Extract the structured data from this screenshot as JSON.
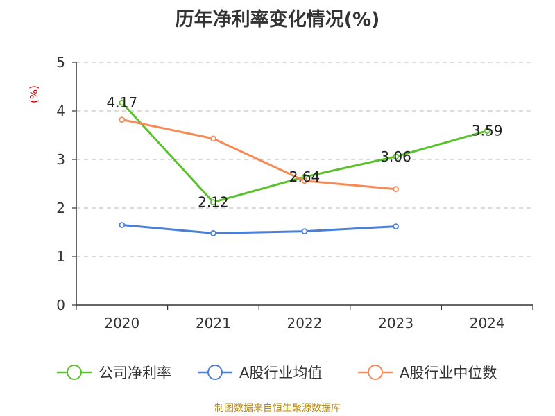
{
  "chart_data": {
    "type": "line",
    "title": "历年净利率变化情况(%)",
    "ylabel": "(%)",
    "categories": [
      "2020",
      "2021",
      "2022",
      "2023",
      "2024"
    ],
    "ylim": [
      0,
      5
    ],
    "yticks": [
      0,
      1,
      2,
      3,
      4,
      5
    ],
    "grid": true,
    "legend_position": "bottom",
    "series": [
      {
        "name": "公司净利率",
        "color": "#5ac12c",
        "values": [
          4.17,
          2.12,
          2.64,
          3.06,
          3.59
        ],
        "labels": [
          "4.17",
          "2.12",
          "2.64",
          "3.06",
          "3.59"
        ]
      },
      {
        "name": "A股行业均值",
        "color": "#4a7fd8",
        "values": [
          1.65,
          1.48,
          1.52,
          1.62,
          null
        ]
      },
      {
        "name": "A股行业中位数",
        "color": "#f58b57",
        "values": [
          3.82,
          3.43,
          2.56,
          2.39,
          null
        ]
      }
    ]
  },
  "source": "制图数据来自恒生聚源数据库"
}
